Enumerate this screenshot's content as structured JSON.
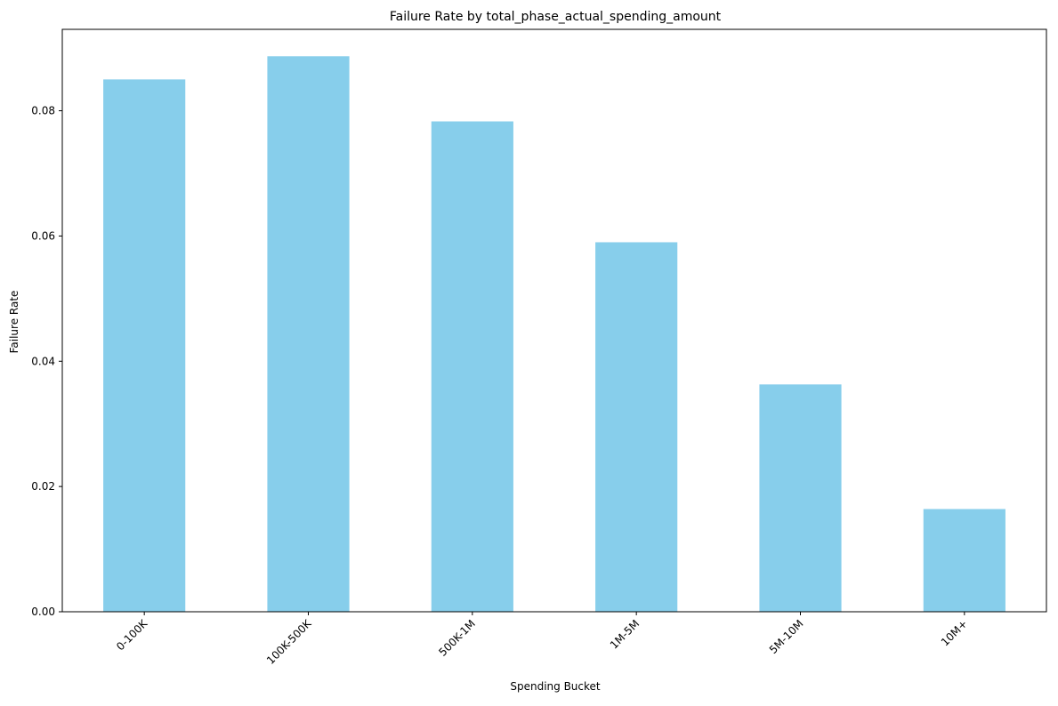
{
  "chart_data": {
    "type": "bar",
    "title": "Failure Rate by total_phase_actual_spending_amount",
    "xlabel": "Spending Bucket",
    "ylabel": "Failure Rate",
    "categories": [
      "0-100K",
      "100K-500K",
      "500K-1M",
      "1M-5M",
      "5M-10M",
      "10M+"
    ],
    "values": [
      0.085,
      0.0887,
      0.0783,
      0.059,
      0.0363,
      0.0164
    ],
    "ylim": [
      0,
      0.093
    ],
    "yticks": [
      0.0,
      0.02,
      0.04,
      0.06,
      0.08
    ],
    "ytick_labels": [
      "0.00",
      "0.02",
      "0.04",
      "0.06",
      "0.08"
    ],
    "grid": false,
    "legend": false,
    "bar_color": "#87CEEB",
    "xtick_rotation": "45°"
  }
}
